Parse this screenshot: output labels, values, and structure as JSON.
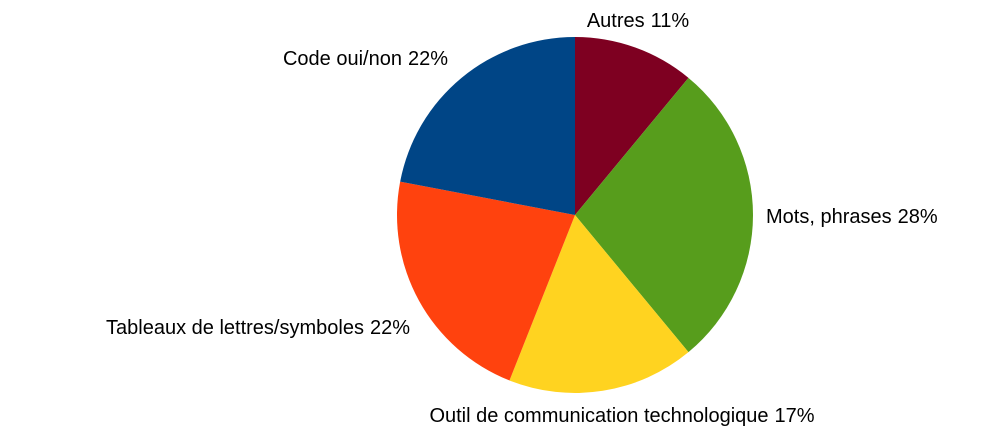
{
  "chart_data": {
    "type": "pie",
    "categories": [
      "Autres",
      "Mots, phrases",
      "Outil de communication technologique",
      "Tableaux de lettres/symboles",
      "Code oui/non"
    ],
    "values": [
      11,
      28,
      17,
      22,
      22
    ],
    "value_labels": [
      "11%",
      "28%",
      "17%",
      "22%",
      "22%"
    ],
    "colors": [
      "#7e0021",
      "#579d1c",
      "#ffd320",
      "#ff420e",
      "#004586"
    ]
  }
}
